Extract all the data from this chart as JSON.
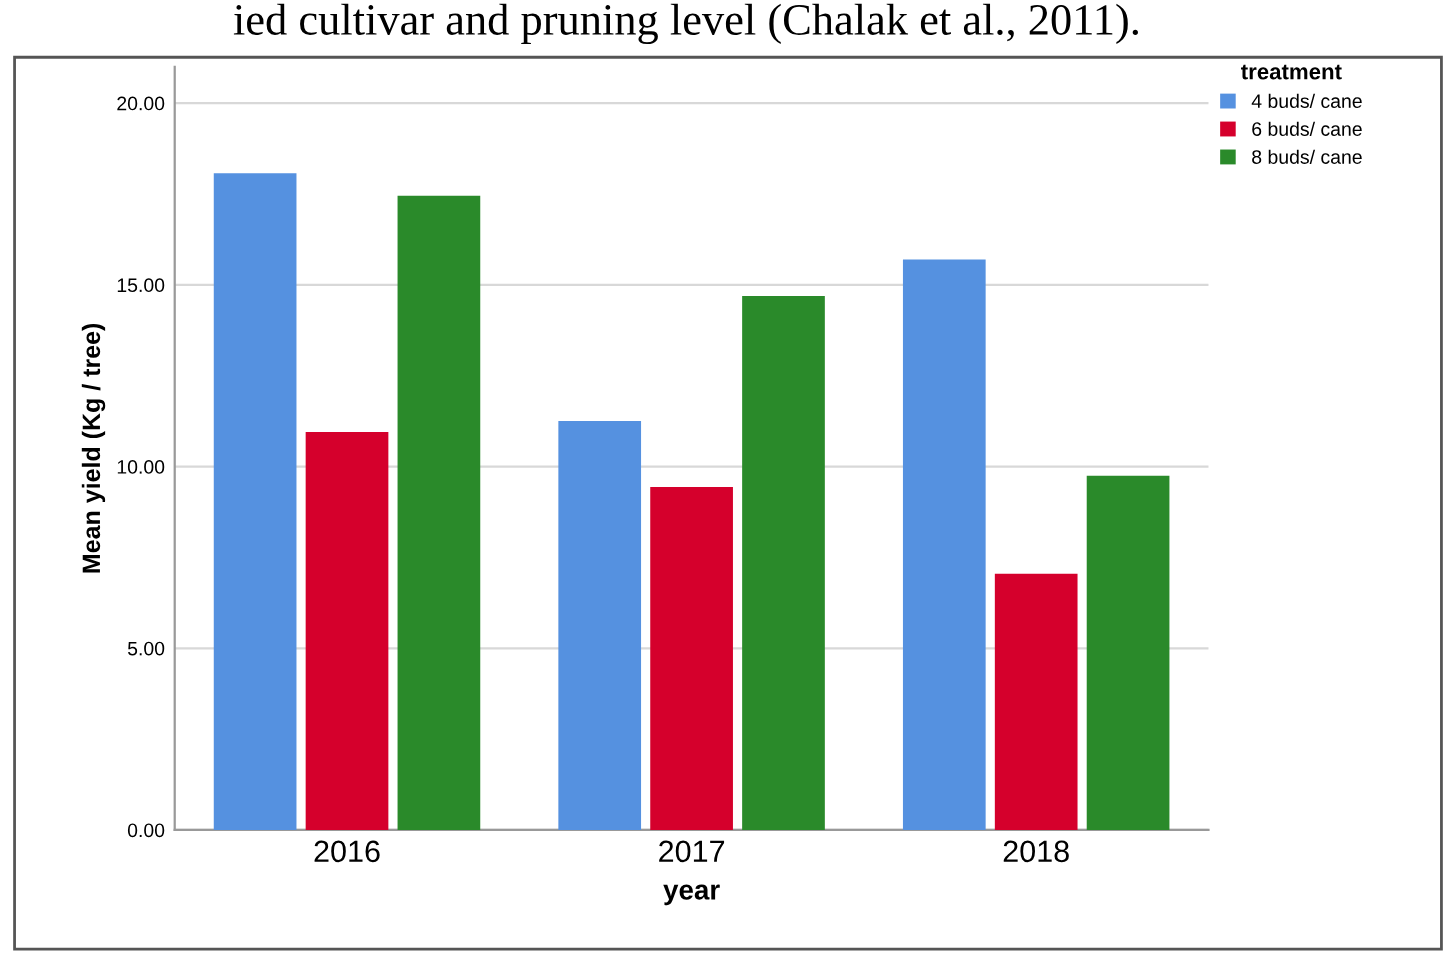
{
  "chart_data": {
    "type": "bar",
    "xlabel": "year",
    "ylabel": "Mean yield (Kg / tree)",
    "legend_title": "treatment",
    "annotations": [
      "ied cultivar and pruning level (Chalak et al., 2011)."
    ],
    "categories": [
      "2016",
      "2017",
      "2018"
    ],
    "series": [
      {
        "name": "4 buds/ cane",
        "color": "#5591e0",
        "values": [
          18.07,
          11.25,
          15.7
        ]
      },
      {
        "name": "6 buds/ cane",
        "color": "#d5002c",
        "values": [
          10.95,
          9.44,
          7.05
        ]
      },
      {
        "name": "8 buds/ cane",
        "color": "#2a8a2a",
        "values": [
          17.45,
          14.69,
          9.75
        ]
      }
    ],
    "ylim": [
      0,
      21
    ],
    "yticks": [
      {
        "value": 0,
        "label": "0.00"
      },
      {
        "value": 5,
        "label": "5.00"
      },
      {
        "value": 10,
        "label": "10.00"
      },
      {
        "value": 15,
        "label": "15.00"
      },
      {
        "value": 20,
        "label": "20.00"
      }
    ],
    "grid": "y",
    "legend": "top right"
  }
}
